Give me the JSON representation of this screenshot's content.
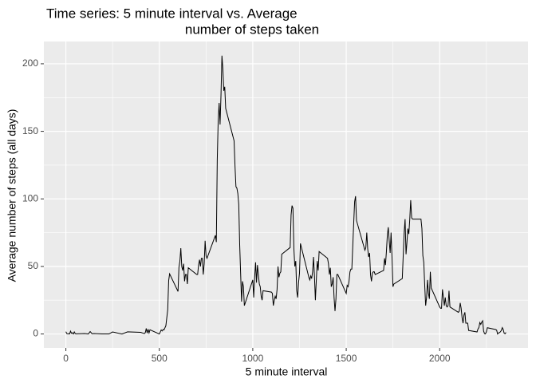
{
  "chart_data": {
    "type": "line",
    "title": [
      "Time series: 5 minute interval vs. Average",
      "number of steps taken"
    ],
    "x_label": "5 minute interval",
    "y_label": "Average number of steps (all days)",
    "x": [
      0,
      5,
      10,
      15,
      20,
      25,
      30,
      35,
      40,
      45,
      50,
      55,
      100,
      110,
      120,
      130,
      140,
      150,
      200,
      230,
      250,
      300,
      330,
      400,
      420,
      425,
      430,
      435,
      440,
      445,
      450,
      500,
      510,
      515,
      520,
      525,
      535,
      545,
      550,
      555,
      600,
      605,
      610,
      615,
      620,
      625,
      630,
      635,
      640,
      645,
      650,
      655,
      700,
      705,
      710,
      715,
      720,
      725,
      730,
      735,
      740,
      745,
      750,
      755,
      800,
      805,
      810,
      815,
      820,
      825,
      830,
      835,
      840,
      845,
      850,
      855,
      900,
      905,
      910,
      915,
      920,
      925,
      930,
      935,
      940,
      945,
      950,
      955,
      1000,
      1005,
      1010,
      1015,
      1020,
      1025,
      1030,
      1035,
      1040,
      1045,
      1050,
      1055,
      1100,
      1105,
      1110,
      1115,
      1120,
      1125,
      1130,
      1135,
      1140,
      1145,
      1150,
      1155,
      1200,
      1205,
      1210,
      1215,
      1220,
      1225,
      1230,
      1235,
      1240,
      1245,
      1250,
      1255,
      1300,
      1305,
      1310,
      1315,
      1320,
      1325,
      1330,
      1335,
      1340,
      1345,
      1350,
      1355,
      1400,
      1405,
      1410,
      1415,
      1420,
      1425,
      1430,
      1435,
      1440,
      1445,
      1450,
      1455,
      1500,
      1505,
      1510,
      1515,
      1520,
      1525,
      1530,
      1535,
      1540,
      1545,
      1550,
      1555,
      1600,
      1605,
      1610,
      1615,
      1620,
      1625,
      1630,
      1635,
      1640,
      1645,
      1650,
      1655,
      1700,
      1705,
      1710,
      1715,
      1720,
      1725,
      1730,
      1735,
      1740,
      1745,
      1750,
      1755,
      1800,
      1805,
      1810,
      1815,
      1820,
      1825,
      1830,
      1835,
      1840,
      1845,
      1850,
      1855,
      1900,
      1905,
      1910,
      1915,
      1920,
      1925,
      1930,
      1935,
      1940,
      1945,
      1950,
      1955,
      2000,
      2005,
      2010,
      2015,
      2020,
      2025,
      2030,
      2035,
      2040,
      2045,
      2050,
      2055,
      2100,
      2105,
      2110,
      2115,
      2120,
      2125,
      2130,
      2135,
      2140,
      2145,
      2150,
      2155,
      2200,
      2205,
      2210,
      2215,
      2220,
      2225,
      2230,
      2235,
      2240,
      2245,
      2250,
      2255,
      2300,
      2305,
      2310,
      2315,
      2320,
      2325,
      2330,
      2335,
      2340,
      2345,
      2350,
      2355
    ],
    "series": [
      {
        "name": "steps",
        "color": "#000000",
        "values": [
          1.7,
          0.3,
          0.1,
          0.2,
          0.1,
          2.1,
          0.5,
          0.9,
          0,
          1.5,
          0.3,
          0.1,
          0.3,
          0.2,
          0,
          1.8,
          0.2,
          0.3,
          0,
          0,
          1.5,
          0,
          1.6,
          1.2,
          0.3,
          1.0,
          4.1,
          0.7,
          3.5,
          0.8,
          3.1,
          0,
          3.0,
          2.2,
          3.3,
          3.0,
          6.1,
          18,
          39.5,
          44.5,
          31.5,
          49.3,
          53.8,
          63.5,
          50,
          47,
          52,
          39,
          44,
          44,
          37,
          49,
          44,
          44,
          51,
          55,
          50,
          56,
          56,
          44,
          52,
          69,
          58,
          56,
          73,
          68,
          129,
          158,
          171,
          155,
          177,
          206,
          196,
          180,
          183,
          167,
          143,
          124,
          109,
          108,
          104,
          96,
          66,
          45,
          24,
          39,
          35,
          21,
          40,
          27,
          42,
          53,
          38,
          51,
          44,
          37,
          35,
          28,
          25,
          32,
          31,
          30,
          21,
          25,
          28,
          26,
          33,
          50,
          42,
          45,
          46,
          59,
          64,
          88,
          95,
          93,
          63,
          50,
          54,
          32,
          27,
          38,
          45,
          67,
          42,
          40,
          43,
          41,
          46,
          57,
          43,
          25,
          40,
          54,
          47,
          61,
          56,
          52,
          44,
          49,
          35,
          37,
          42,
          27,
          17,
          26,
          44,
          44,
          30,
          36,
          35,
          39,
          46,
          48,
          48,
          65,
          82,
          98,
          102,
          84,
          62,
          64,
          75,
          63,
          57,
          60,
          44,
          39,
          45,
          46,
          46,
          44,
          47,
          56,
          51,
          61,
          73,
          79,
          69,
          60,
          75,
          57,
          35,
          37,
          41,
          58,
          75,
          85,
          59,
          68,
          78,
          74,
          85,
          99,
          86,
          85,
          85,
          78,
          58,
          53,
          36,
          21,
          27,
          40,
          30,
          26,
          46,
          34,
          20,
          19,
          19,
          33,
          27,
          21,
          27,
          21,
          20,
          21,
          32,
          20,
          16,
          17,
          23,
          19,
          12,
          8,
          14,
          16,
          8,
          8,
          8,
          2.6,
          1.5,
          3.7,
          4.8,
          8.5,
          7.1,
          8.7,
          9.8,
          2.2,
          0.3,
          0.1,
          1.6,
          4.6,
          3.3,
          2.8,
          0,
          0.8,
          1.0,
          1.6,
          2.6,
          4.7,
          3.3,
          0.6,
          0.2,
          1.1
        ]
      }
    ],
    "xlim": [
      -117.75,
      2472.75
    ],
    "xticks": [
      0,
      500,
      1000,
      1500,
      2000
    ],
    "ylim": [
      -10.3,
      216.5
    ],
    "yticks": [
      0,
      50,
      100,
      150,
      200
    ],
    "x_minor_breaks": [
      250,
      750,
      1250,
      1750,
      2250
    ],
    "y_minor_breaks": [
      25,
      75,
      125,
      175
    ],
    "grid": true
  }
}
